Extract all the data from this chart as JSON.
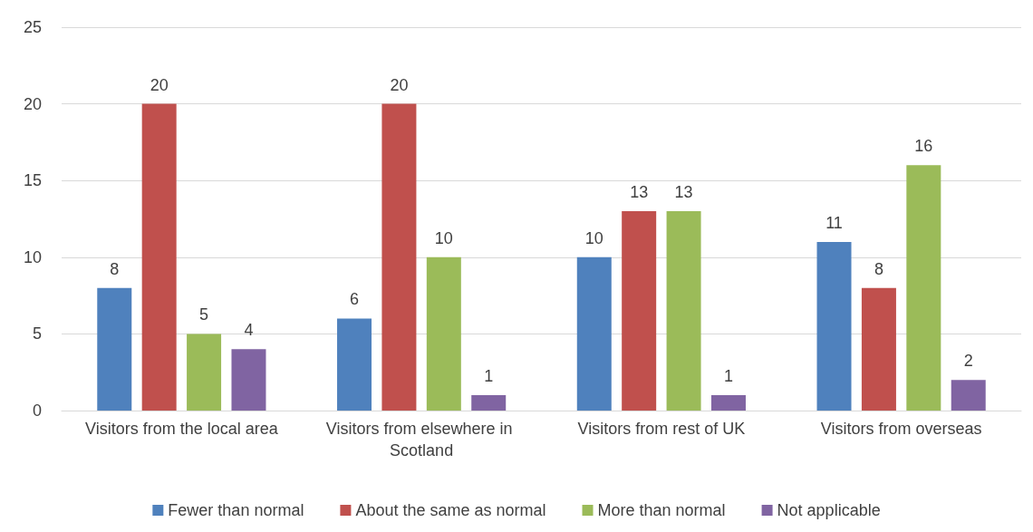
{
  "chart_data": {
    "type": "bar",
    "categories": [
      "Visitors from the local area",
      "Visitors from elsewhere in Scotland",
      "Visitors from rest of UK",
      "Visitors from overseas"
    ],
    "series": [
      {
        "name": "Fewer than normal",
        "color": "#4f81bd",
        "values": [
          8,
          6,
          10,
          11
        ]
      },
      {
        "name": "About the same as normal",
        "color": "#c0504d",
        "values": [
          20,
          20,
          13,
          8
        ]
      },
      {
        "name": "More than normal",
        "color": "#9bbb59",
        "values": [
          5,
          10,
          13,
          16
        ]
      },
      {
        "name": "Not applicable",
        "color": "#8064a2",
        "values": [
          4,
          1,
          1,
          2
        ]
      }
    ],
    "ylim": [
      0,
      25
    ],
    "yticks": [
      0,
      5,
      10,
      15,
      20,
      25
    ],
    "grid": "y",
    "legend": "bottom",
    "data_labels": true
  }
}
